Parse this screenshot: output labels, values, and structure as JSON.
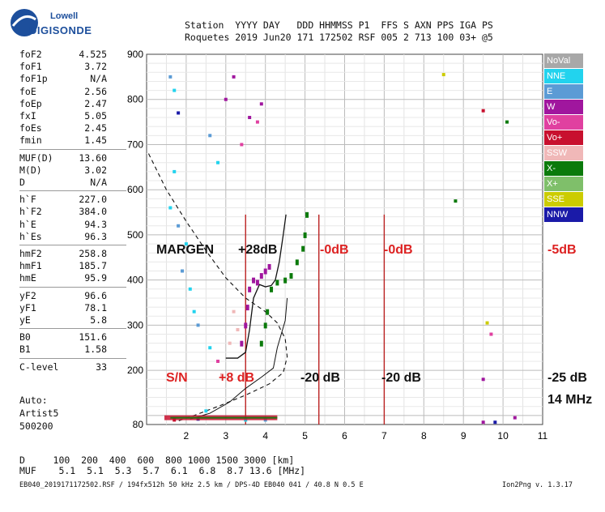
{
  "logo": {
    "line1": "Lowell",
    "line2": "DIGISONDE"
  },
  "header": {
    "labels": "Station  YYYY DAY   DDD HHMMSS P1  FFS S AXN PPS IGA PS",
    "values": "Roquetes 2019 Jun20 171 172502 RSF 005 2 713 100 03+ @5"
  },
  "params": [
    {
      "k": "foF2",
      "v": "4.525"
    },
    {
      "k": "foF1",
      "v": "3.72"
    },
    {
      "k": "foF1p",
      "v": "N/A"
    },
    {
      "k": "foE",
      "v": "2.56"
    },
    {
      "k": "foEp",
      "v": "2.47"
    },
    {
      "k": "fxI",
      "v": "5.05"
    },
    {
      "k": "foEs",
      "v": "2.45"
    },
    {
      "k": "fmin",
      "v": "1.45"
    },
    {
      "k": "MUF(D)",
      "v": "13.60"
    },
    {
      "k": "M(D)",
      "v": "3.02"
    },
    {
      "k": "D",
      "v": "N/A"
    },
    {
      "k": "h`F",
      "v": "227.0"
    },
    {
      "k": "h`F2",
      "v": "384.0"
    },
    {
      "k": "h`E",
      "v": "94.3"
    },
    {
      "k": "h`Es",
      "v": "96.3"
    },
    {
      "k": "hmF2",
      "v": "258.8"
    },
    {
      "k": "hmF1",
      "v": "185.7"
    },
    {
      "k": "hmE",
      "v": "95.9"
    },
    {
      "k": "yF2",
      "v": "96.6"
    },
    {
      "k": "yF1",
      "v": "78.1"
    },
    {
      "k": "yE",
      "v": "5.8"
    },
    {
      "k": "B0",
      "v": "151.6"
    },
    {
      "k": "B1",
      "v": "1.58"
    },
    {
      "k": "C-level",
      "v": "33"
    }
  ],
  "auto": {
    "l1": "Auto:",
    "l2": "Artist5",
    "l3": "500200"
  },
  "footer": {
    "d_row": "D     100  200  400  600  800 1000 1500 3000 [km]",
    "muf_row": "MUF    5.1  5.1  5.3  5.7  6.1  6.8  8.7 13.6 [MHz]"
  },
  "fileinfo": "EB040_2019171172502.RSF / 194fx512h 50 kHz 2.5 km / DPS-4D EB040 041 / 40.8 N 0.5 E",
  "version": "Ion2Png v. 1.3.17",
  "legend": [
    {
      "label": "NoVal",
      "color": "#a8a8a8"
    },
    {
      "label": "NNE",
      "color": "#22d3ee"
    },
    {
      "label": "E",
      "color": "#5b9bd5"
    },
    {
      "label": "W",
      "color": "#a0169e"
    },
    {
      "label": "Vo-",
      "color": "#e040a0"
    },
    {
      "label": "Vo+",
      "color": "#c8102e"
    },
    {
      "label": "SSW",
      "color": "#f0b8b8"
    },
    {
      "label": "X-",
      "color": "#0b7a0b"
    },
    {
      "label": "X+",
      "color": "#7fbf6a"
    },
    {
      "label": "SSE",
      "color": "#cccc00"
    },
    {
      "label": "NNW",
      "color": "#1a1aa8"
    }
  ],
  "annotations": {
    "margen": "MARGEN",
    "db28": "+28dB",
    "db0a": "-0dB",
    "db0b": "-0dB",
    "db5": "-5dB",
    "sn": "S/N",
    "db8": "+8 dB",
    "db20a": "-20 dB",
    "db20b": "-20 dB",
    "db25": "-25 dB",
    "mhz": "14 MHz"
  },
  "chart_data": {
    "type": "scatter",
    "title": "",
    "xlabel": "",
    "ylabel": "",
    "xlim": [
      1,
      11
    ],
    "ylim": [
      80,
      900
    ],
    "x_ticks": [
      2,
      3,
      4,
      5,
      6,
      7,
      8,
      9,
      10,
      11
    ],
    "y_ticks": [
      80,
      200,
      300,
      400,
      500,
      600,
      700,
      800,
      900
    ],
    "grid": true,
    "series": [
      {
        "name": "MUF profile (black)",
        "x": [
          3.0,
          3.3,
          3.5,
          3.6,
          3.7,
          3.85,
          4.0,
          4.15,
          4.25,
          4.35,
          4.45,
          4.52
        ],
        "y": [
          227,
          227,
          240,
          290,
          360,
          390,
          385,
          388,
          400,
          440,
          500,
          545
        ]
      },
      {
        "name": "X- (green)",
        "x": [
          3.9,
          4.0,
          4.05,
          4.15,
          4.3,
          4.5,
          4.65,
          4.8,
          4.95,
          5.0,
          5.05
        ],
        "y": [
          260,
          300,
          330,
          380,
          395,
          400,
          410,
          440,
          470,
          500,
          545
        ]
      },
      {
        "name": "W (magenta)",
        "x": [
          3.4,
          3.5,
          3.55,
          3.6,
          3.7,
          3.8,
          3.9,
          4.0,
          4.1
        ],
        "y": [
          260,
          300,
          340,
          380,
          400,
          395,
          410,
          420,
          430
        ]
      }
    ],
    "vertical_markers_mhz": [
      3.5,
      5.35,
      7.0
    ],
    "legend_position": "right"
  }
}
